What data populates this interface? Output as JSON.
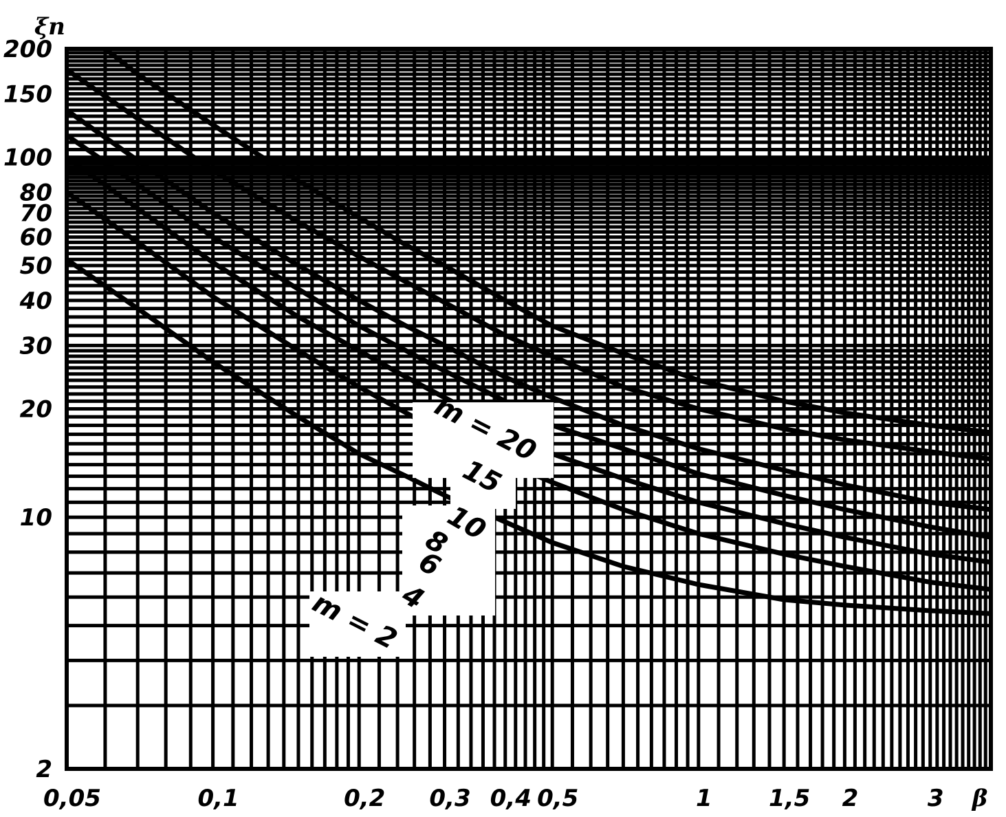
{
  "chart_data": {
    "type": "line",
    "ylabel": "ξп",
    "xlabel": "β",
    "x_scale": "log",
    "y_scale": "log",
    "xlim": [
      0.05,
      4
    ],
    "ylim": [
      2,
      200
    ],
    "x_ticks": [
      {
        "value": 0.05,
        "label": "0,05"
      },
      {
        "value": 0.1,
        "label": "0,1"
      },
      {
        "value": 0.2,
        "label": "0,2"
      },
      {
        "value": 0.3,
        "label": "0,3"
      },
      {
        "value": 0.4,
        "label": "0,4"
      },
      {
        "value": 0.5,
        "label": "0,5"
      },
      {
        "value": 1,
        "label": "1"
      },
      {
        "value": 1.5,
        "label": "1,5"
      },
      {
        "value": 2,
        "label": "2"
      },
      {
        "value": 3,
        "label": "3"
      }
    ],
    "y_ticks": [
      {
        "value": 2,
        "label": "2"
      },
      {
        "value": 10,
        "label": "10"
      },
      {
        "value": 20,
        "label": "20"
      },
      {
        "value": 30,
        "label": "30"
      },
      {
        "value": 40,
        "label": "40"
      },
      {
        "value": 50,
        "label": "50"
      },
      {
        "value": 60,
        "label": "60"
      },
      {
        "value": 70,
        "label": "70"
      },
      {
        "value": 80,
        "label": "80"
      },
      {
        "value": 100,
        "label": "100"
      },
      {
        "value": 150,
        "label": "150"
      },
      {
        "value": 200,
        "label": "200"
      }
    ],
    "grid": true,
    "series": [
      {
        "name": "m = 2",
        "x": [
          0.05,
          0.07,
          0.1,
          0.15,
          0.2,
          0.25,
          0.3,
          0.4,
          0.5,
          0.7,
          1,
          1.5,
          2,
          3,
          4
        ],
        "y": [
          52,
          38,
          27,
          19,
          15,
          13,
          11.5,
          9.7,
          8.5,
          7.3,
          6.5,
          5.9,
          5.7,
          5.5,
          5.4
        ]
      },
      {
        "name": "4",
        "x": [
          0.05,
          0.07,
          0.1,
          0.15,
          0.2,
          0.25,
          0.3,
          0.4,
          0.5,
          0.7,
          1,
          1.5,
          2,
          3,
          4
        ],
        "y": [
          80,
          58,
          41,
          29,
          23,
          19.5,
          17,
          14.2,
          12.5,
          10.5,
          9.0,
          7.9,
          7.3,
          6.6,
          6.3
        ]
      },
      {
        "name": "6",
        "x": [
          0.05,
          0.07,
          0.1,
          0.15,
          0.2,
          0.25,
          0.3,
          0.4,
          0.5,
          0.7,
          1,
          1.5,
          2,
          3,
          4
        ],
        "y": [
          100,
          72,
          51,
          36,
          29,
          24.5,
          21.5,
          17.5,
          15,
          12.8,
          11,
          9.6,
          8.8,
          7.9,
          7.5
        ]
      },
      {
        "name": "8",
        "x": [
          0.05,
          0.07,
          0.1,
          0.15,
          0.2,
          0.25,
          0.3,
          0.4,
          0.5,
          0.7,
          1,
          1.5,
          2,
          3,
          4
        ],
        "y": [
          115,
          84,
          60,
          43,
          34,
          29,
          25.5,
          21,
          18,
          15.5,
          13.2,
          11.5,
          10.5,
          9.4,
          8.8
        ]
      },
      {
        "name": "10",
        "x": [
          0.05,
          0.07,
          0.1,
          0.15,
          0.2,
          0.25,
          0.3,
          0.4,
          0.5,
          0.7,
          1,
          1.5,
          2,
          3,
          4
        ],
        "y": [
          135,
          98,
          70,
          50,
          40,
          34,
          30,
          24.5,
          21.5,
          18,
          15.5,
          13.5,
          12.3,
          11,
          10.5
        ]
      },
      {
        "name": "15",
        "x": [
          0.05,
          0.07,
          0.1,
          0.15,
          0.2,
          0.25,
          0.3,
          0.4,
          0.5,
          0.7,
          1,
          1.5,
          2,
          3,
          4
        ],
        "y": [
          175,
          128,
          92,
          66,
          53,
          45,
          39.5,
          32,
          28,
          23,
          20,
          17.6,
          16.4,
          15.2,
          14.5
        ]
      },
      {
        "name": "m = 20",
        "x": [
          0.06,
          0.07,
          0.1,
          0.15,
          0.2,
          0.25,
          0.3,
          0.4,
          0.5,
          0.7,
          1,
          1.5,
          2,
          3,
          4
        ],
        "y": [
          200,
          170,
          123,
          86,
          68,
          57,
          50,
          40,
          34,
          28.5,
          24,
          21,
          19.5,
          18,
          17.2
        ]
      }
    ]
  }
}
